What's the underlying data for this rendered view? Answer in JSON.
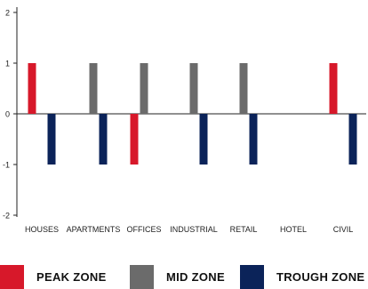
{
  "chart_data": {
    "type": "bar",
    "categories": [
      "HOUSES",
      "APARTMENTS",
      "OFFICES",
      "INDUSTRIAL",
      "RETAIL",
      "HOTEL",
      "CIVIL"
    ],
    "series": [
      {
        "name": "PEAK ZONE",
        "color": "#d7182a",
        "values": [
          1,
          0,
          -1,
          0,
          0,
          0,
          1
        ]
      },
      {
        "name": "MID ZONE",
        "color": "#6b6b6b",
        "values": [
          0,
          1,
          1,
          1,
          1,
          0,
          0
        ]
      },
      {
        "name": "TROUGH ZONE",
        "color": "#0b2359",
        "values": [
          -1,
          -1,
          0,
          -1,
          -1,
          0,
          -1
        ]
      }
    ],
    "ylim": [
      -2,
      2
    ],
    "yticks": [
      2,
      1,
      0,
      -1,
      -2
    ],
    "title": "",
    "xlabel": "",
    "ylabel": "",
    "grid": false,
    "legend_position": "bottom"
  },
  "legend": {
    "items": [
      {
        "label": "PEAK ZONE",
        "color": "#d7182a"
      },
      {
        "label": "MID ZONE",
        "color": "#6b6b6b"
      },
      {
        "label": "TROUGH ZONE",
        "color": "#0b2359"
      }
    ]
  }
}
